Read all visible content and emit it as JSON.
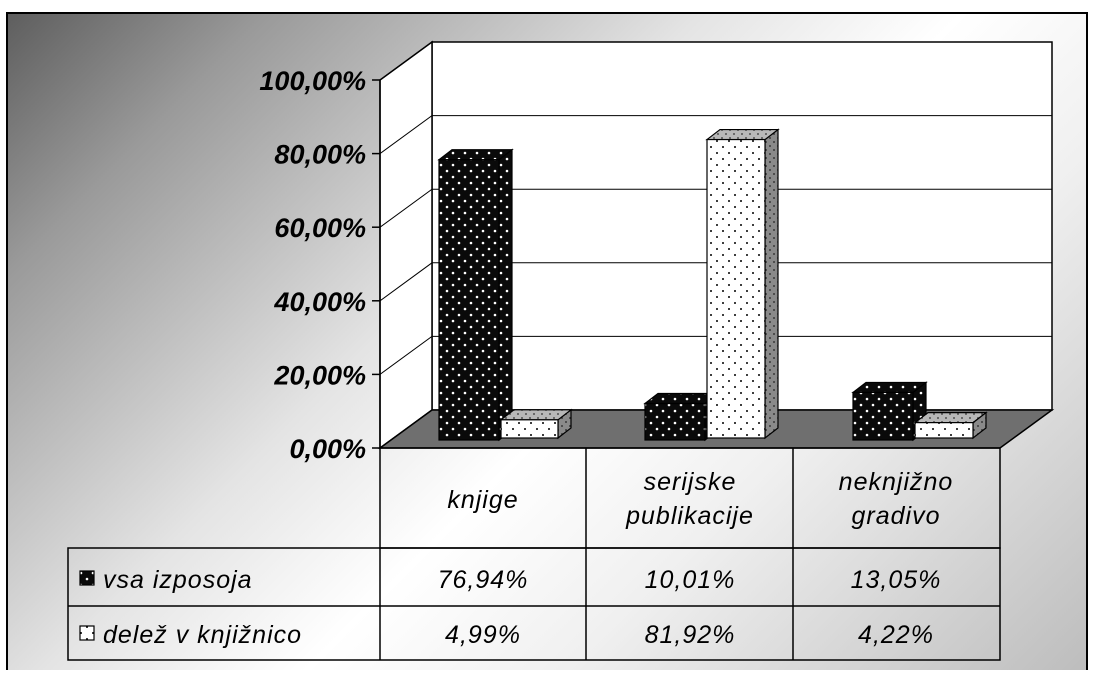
{
  "chart_data": {
    "type": "bar",
    "categories": [
      "knjige",
      "serijske publikacije",
      "neknjižno gradivo"
    ],
    "series": [
      {
        "name": "vsa izposoja",
        "values": [
          76.94,
          10.01,
          13.05
        ],
        "labels": [
          "76,94%",
          "10,01%",
          "13,05%"
        ],
        "pattern": "dark"
      },
      {
        "name": "delež v knjižnico",
        "values": [
          4.99,
          81.92,
          4.22
        ],
        "labels": [
          "4,99%",
          "81,92%",
          "4,22%"
        ],
        "pattern": "light"
      }
    ],
    "y_ticks": [
      "0,00%",
      "20,00%",
      "40,00%",
      "60,00%",
      "80,00%",
      "100,00%"
    ],
    "ylim": [
      0,
      100
    ],
    "grid": true,
    "legend": "data-table",
    "title": "",
    "xlabel": "",
    "ylabel": ""
  }
}
